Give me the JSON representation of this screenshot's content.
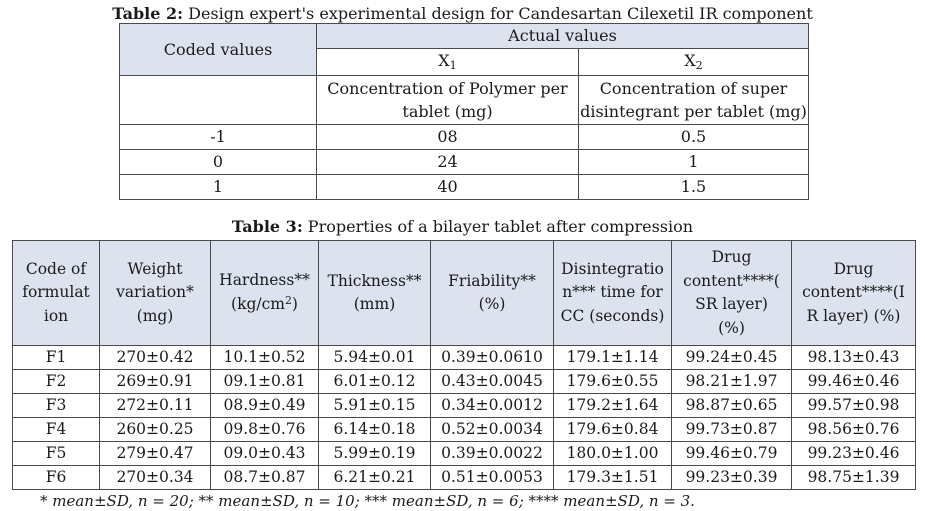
{
  "table2": {
    "caption_label": "Table 2:",
    "caption_text": " Design expert's experimental design for Candesartan Cilexetil IR component",
    "coded_header": "Coded values",
    "actual_header": "Actual values",
    "x1": {
      "sym": "X",
      "sub": "1",
      "desc_line1": "Concentration of Polymer per",
      "desc_line2": "tablet (mg)"
    },
    "x2": {
      "sym": "X",
      "sub": "2",
      "desc_line1": "Concentration of super",
      "desc_line2": "disintegrant per tablet (mg)"
    },
    "rows": [
      {
        "coded": "-1",
        "x1": "08",
        "x2": "0.5"
      },
      {
        "coded": "0",
        "x1": "24",
        "x2": "1"
      },
      {
        "coded": "1",
        "x1": "40",
        "x2": "1.5"
      }
    ]
  },
  "table3": {
    "caption_label": "Table 3:",
    "caption_text": " Properties of a bilayer tablet after compression",
    "headers": {
      "code": [
        "Code of",
        "formulat",
        "ion"
      ],
      "weight": [
        "Weight",
        "variation*",
        "(mg)"
      ],
      "hardness": [
        "Hardness**",
        "(kg/cm",
        "2",
        ")"
      ],
      "thickness": [
        "Thickness**",
        "(mm)"
      ],
      "friability": [
        "Friability**",
        "(%)"
      ],
      "disint": [
        "Disintegratio",
        "n*** time for",
        "CC (seconds)"
      ],
      "drug_sr": [
        "Drug",
        "content****(",
        "SR layer)",
        "(%)"
      ],
      "drug_ir": [
        "Drug",
        "content****(I",
        "R layer) (%)"
      ]
    },
    "rows": [
      {
        "code": "F1",
        "weight": "270±0.42",
        "hardness": "10.1±0.52",
        "thickness": "5.94±0.01",
        "friability": "0.39±0.0610",
        "disint": "179.1±1.14",
        "drug_sr": "99.24±0.45",
        "drug_ir": "98.13±0.43"
      },
      {
        "code": "F2",
        "weight": "269±0.91",
        "hardness": "09.1±0.81",
        "thickness": "6.01±0.12",
        "friability": "0.43±0.0045",
        "disint": "179.6±0.55",
        "drug_sr": "98.21±1.97",
        "drug_ir": "99.46±0.46"
      },
      {
        "code": "F3",
        "weight": "272±0.11",
        "hardness": "08.9±0.49",
        "thickness": "5.91±0.15",
        "friability": "0.34±0.0012",
        "disint": "179.2±1.64",
        "drug_sr": "98.87±0.65",
        "drug_ir": "99.57±0.98"
      },
      {
        "code": "F4",
        "weight": "260±0.25",
        "hardness": "09.8±0.76",
        "thickness": "6.14±0.18",
        "friability": "0.52±0.0034",
        "disint": "179.6±0.84",
        "drug_sr": "99.73±0.87",
        "drug_ir": "98.56±0.76"
      },
      {
        "code": "F5",
        "weight": "279±0.47",
        "hardness": "09.0±0.43",
        "thickness": "5.99±0.19",
        "friability": "0.39±0.0022",
        "disint": "180.0±1.00",
        "drug_sr": "99.46±0.79",
        "drug_ir": "99.23±0.46"
      },
      {
        "code": "F6",
        "weight": "270±0.34",
        "hardness": "08.7±0.87",
        "thickness": "6.21±0.21",
        "friability": "0.51±0.0053",
        "disint": "179.3±1.51",
        "drug_sr": "99.23±0.39",
        "drug_ir": "98.75±1.39"
      }
    ],
    "footnote": "* mean±SD, n = 20; ** mean±SD, n = 10; *** mean±SD, n = 6; **** mean±SD, n = 3."
  }
}
